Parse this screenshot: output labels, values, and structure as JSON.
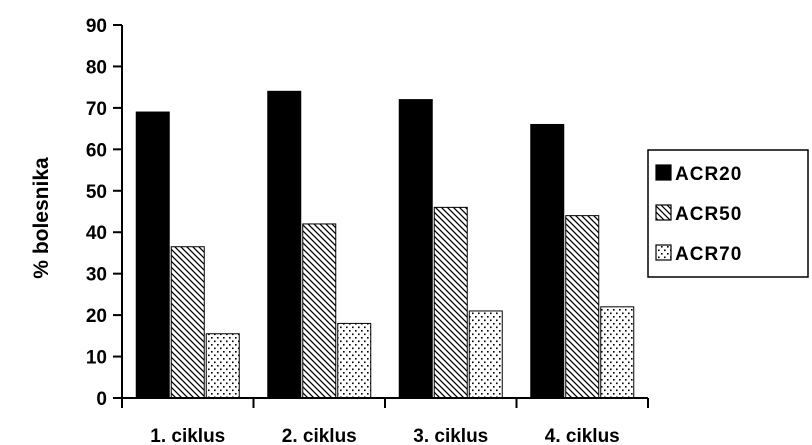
{
  "chart_data": {
    "type": "bar",
    "categories": [
      "1. ciklus",
      "2. ciklus",
      "3. ciklus",
      "4. ciklus"
    ],
    "series": [
      {
        "name": "ACR20",
        "values": [
          69,
          74,
          72,
          66
        ],
        "pattern": "solid",
        "color": "#000000"
      },
      {
        "name": "ACR50",
        "values": [
          36.5,
          42,
          46,
          44
        ],
        "pattern": "diagonal-hatch",
        "color": "#000000"
      },
      {
        "name": "ACR70",
        "values": [
          15.5,
          18,
          21,
          22
        ],
        "pattern": "dots",
        "color": "#000000"
      }
    ],
    "title": "",
    "xlabel": "",
    "ylabel": "% bolesnika",
    "ylim": [
      0,
      90
    ],
    "yticks": [
      0,
      10,
      20,
      30,
      40,
      50,
      60,
      70,
      80,
      90
    ],
    "grid": false,
    "legend_position": "right"
  }
}
